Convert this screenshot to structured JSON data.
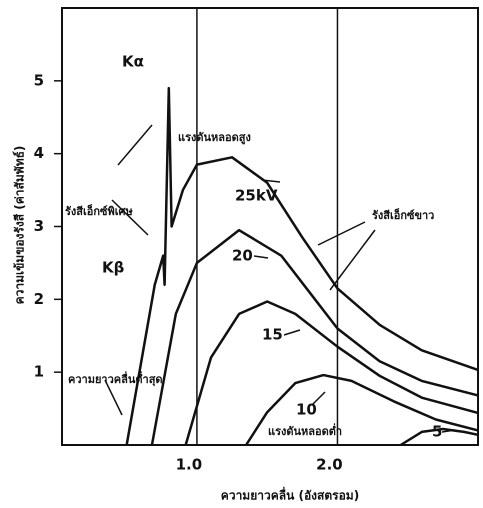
{
  "chart_data": {
    "type": "line",
    "x_label": "ความยาวคลื่น (อังสตรอม)",
    "y_label": "ความเข้มของรังสี (ค่าสัมพัทธ์)",
    "xlim": [
      0.04,
      3.0
    ],
    "ylim": [
      0,
      6
    ],
    "xticks": [
      {
        "value": 1,
        "label": "1.0"
      },
      {
        "value": 2,
        "label": "2.0"
      }
    ],
    "yticks": [
      1,
      2,
      3,
      4,
      5
    ],
    "grid": true,
    "series": [
      {
        "name": "25kV",
        "color": "#111111",
        "x": [
          0.5,
          0.6,
          0.7,
          0.76,
          0.77,
          0.8,
          0.82,
          0.9,
          1.0,
          1.25,
          1.5,
          1.75,
          2.0,
          2.3,
          2.6,
          3.0
        ],
        "values": [
          0,
          1.1,
          2.2,
          2.6,
          2.2,
          4.9,
          3.0,
          3.5,
          3.85,
          3.95,
          3.6,
          2.85,
          2.15,
          1.65,
          1.3,
          1.03
        ]
      },
      {
        "name": "20",
        "color": "#111111",
        "x": [
          0.68,
          0.85,
          1.0,
          1.3,
          1.6,
          1.8,
          2.0,
          2.3,
          2.6,
          3.0
        ],
        "values": [
          0,
          1.8,
          2.5,
          2.95,
          2.6,
          2.1,
          1.6,
          1.15,
          0.88,
          0.68
        ]
      },
      {
        "name": "15",
        "color": "#111111",
        "x": [
          0.92,
          1.1,
          1.3,
          1.5,
          1.7,
          2.0,
          2.3,
          2.6,
          3.0
        ],
        "values": [
          0,
          1.2,
          1.8,
          1.97,
          1.8,
          1.35,
          0.95,
          0.65,
          0.44
        ]
      },
      {
        "name": "10",
        "color": "#111111",
        "x": [
          1.35,
          1.5,
          1.7,
          1.9,
          2.1,
          2.4,
          2.7,
          3.0
        ],
        "values": [
          0,
          0.45,
          0.85,
          0.96,
          0.88,
          0.6,
          0.35,
          0.2
        ]
      },
      {
        "name": "5",
        "color": "#111111",
        "x": [
          2.45,
          2.6,
          2.75,
          2.9,
          3.0
        ],
        "values": [
          0,
          0.18,
          0.22,
          0.18,
          0.14
        ]
      }
    ],
    "annotations": [
      "Kα",
      "Kβ",
      "แรงดันหลอดสูง",
      "รังสีเอ็กซ์พิเศษ",
      "รังสีเอ็กซ์ขาว",
      "ความยาวคลื่นต่ำสุด",
      "แรงดันหลอดต่ำ"
    ]
  }
}
